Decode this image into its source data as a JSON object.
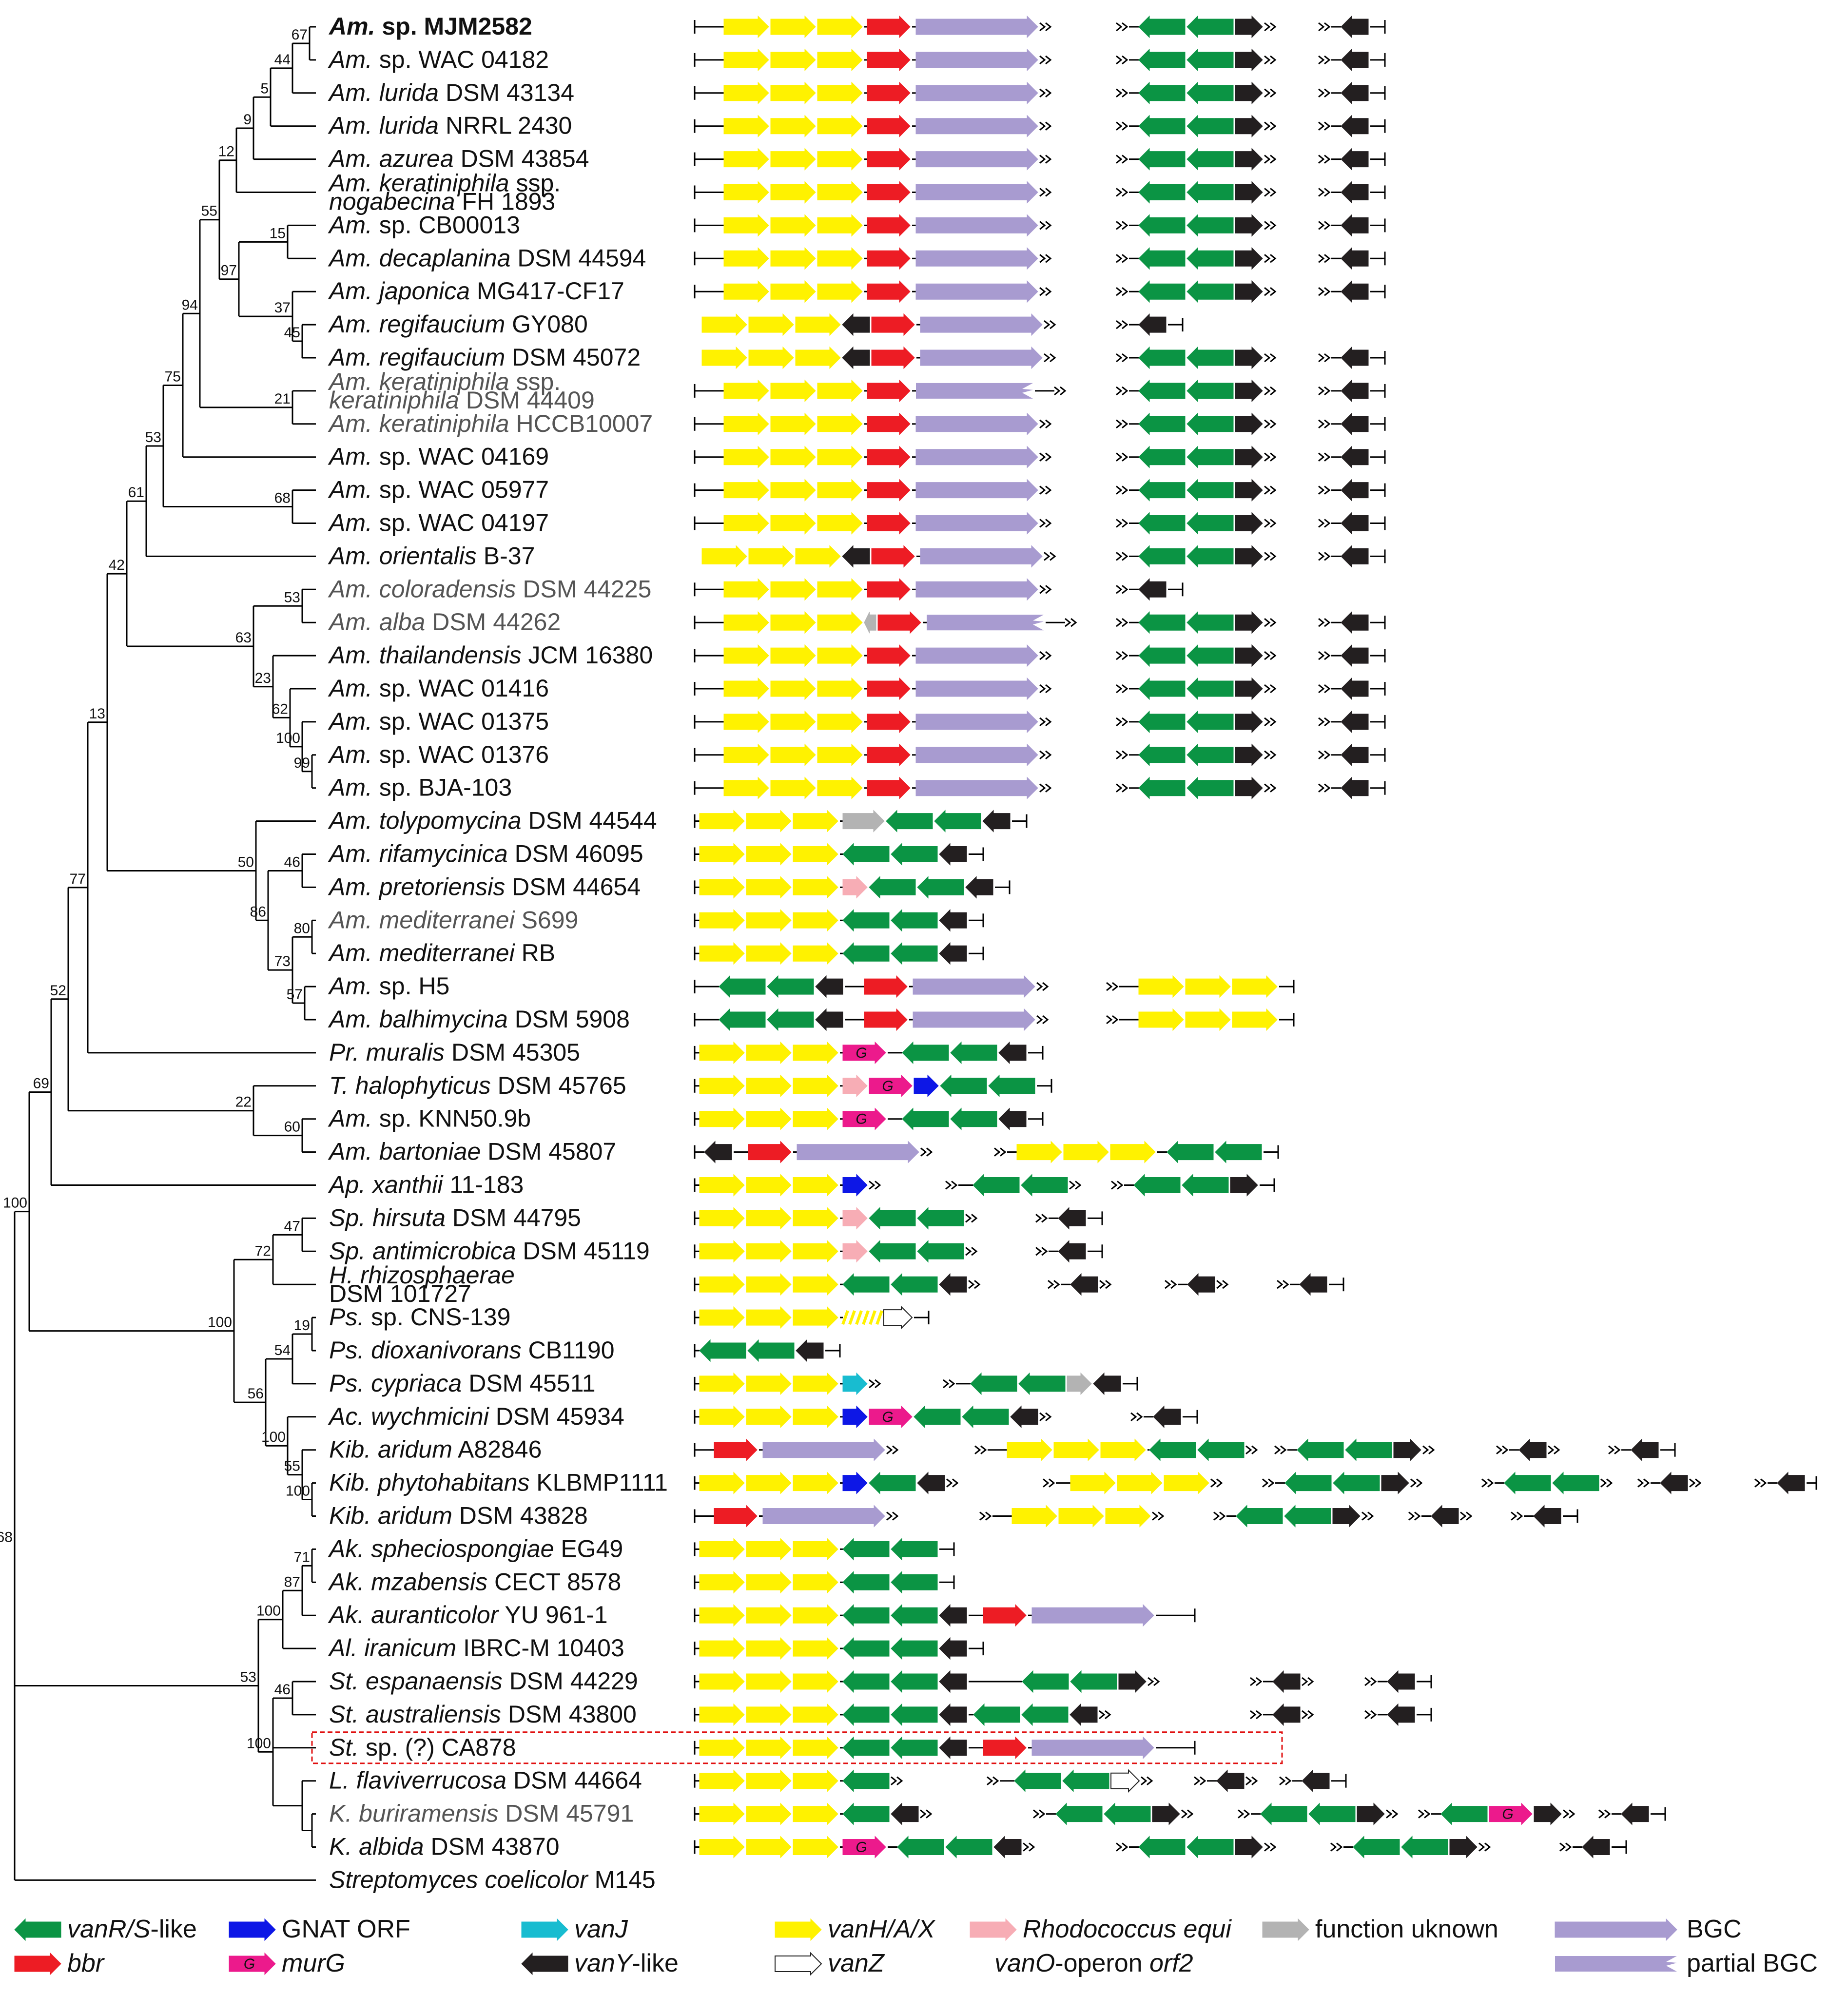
{
  "colors": {
    "vanRS": "#0b9444",
    "bbr": "#ed1c24",
    "gnat": "#0d17e6",
    "murG": "#ec1a8c",
    "vanJ": "#18bcd0",
    "vanY": "#231f20",
    "vanHAX": "#fff200",
    "vanZ": "#ffffff",
    "rhodo": "#f7adb5",
    "unknown": "#b3b3b3",
    "bgc": "#a89bd0",
    "line": "#000000",
    "highlight": "#e01010"
  },
  "taxa": [
    {
      "genus": "Am.",
      "rest": " sp. MJM2582",
      "bold": true
    },
    {
      "genus": "Am.",
      "rest": " sp. WAC 04182"
    },
    {
      "genus": "Am. lurida",
      "rest": " DSM 43134"
    },
    {
      "genus": "Am. lurida",
      "rest": " NRRL 2430"
    },
    {
      "genus": "Am. azurea",
      "rest": " DSM 43854"
    },
    {
      "genus": "Am. keratiniphila",
      "rest": " ssp.",
      "genus2": "nogabecina",
      "rest2": " FH 1893"
    },
    {
      "genus": "Am.",
      "rest": " sp. CB00013"
    },
    {
      "genus": "Am. decaplanina",
      "rest": " DSM 44594"
    },
    {
      "genus": "Am. japonica",
      "rest": " MG417-CF17"
    },
    {
      "genus": "Am. regifaucium",
      "rest": " GY080"
    },
    {
      "genus": "Am. regifaucium",
      "rest": " DSM 45072"
    },
    {
      "genus": "Am. keratiniphila",
      "rest": " ssp.",
      "genus2": "keratiniphila",
      "rest2": " DSM 44409",
      "grey": true
    },
    {
      "genus": "Am. keratiniphila",
      "rest": " HCCB10007",
      "grey": true
    },
    {
      "genus": "Am.",
      "rest": " sp. WAC 04169"
    },
    {
      "genus": "Am.",
      "rest": " sp. WAC 05977"
    },
    {
      "genus": "Am.",
      "rest": " sp. WAC 04197"
    },
    {
      "genus": "Am. orientalis",
      "rest": " B-37"
    },
    {
      "genus": "Am. coloradensis",
      "rest": " DSM 44225",
      "grey": true
    },
    {
      "genus": "Am. alba",
      "rest": " DSM 44262",
      "grey": true
    },
    {
      "genus": "Am. thailandensis",
      "rest": " JCM 16380"
    },
    {
      "genus": "Am.",
      "rest": " sp. WAC 01416"
    },
    {
      "genus": "Am.",
      "rest": " sp. WAC 01375"
    },
    {
      "genus": "Am.",
      "rest": " sp. WAC 01376"
    },
    {
      "genus": "Am.",
      "rest": " sp. BJA-103"
    },
    {
      "genus": "Am. tolypomycina",
      "rest": " DSM 44544"
    },
    {
      "genus": "Am. rifamycinica",
      "rest": " DSM 46095"
    },
    {
      "genus": "Am. pretoriensis",
      "rest": " DSM 44654"
    },
    {
      "genus": "Am. mediterranei",
      "rest": " S699",
      "grey": true
    },
    {
      "genus": "Am. mediterranei",
      "rest": " RB"
    },
    {
      "genus": "Am.",
      "rest": " sp. H5"
    },
    {
      "genus": "Am. balhimycina",
      "rest": " DSM 5908"
    },
    {
      "genus": "Pr. muralis",
      "rest": " DSM 45305"
    },
    {
      "genus": "T. halophyticus",
      "rest": " DSM 45765"
    },
    {
      "genus": "Am.",
      "rest": " sp. KNN50.9b"
    },
    {
      "genus": "Am. bartoniae",
      "rest": " DSM 45807"
    },
    {
      "genus": "Ap. xanthii",
      "rest": " 11-183"
    },
    {
      "genus": "Sp. hirsuta",
      "rest": " DSM 44795"
    },
    {
      "genus": "Sp. antimicrobica",
      "rest": " DSM 45119"
    },
    {
      "genus": "H. rhizosphaerae",
      "rest": "",
      "genus2": "",
      "rest2": "DSM 101727"
    },
    {
      "genus": "Ps.",
      "rest": " sp. CNS-139"
    },
    {
      "genus": "Ps. dioxanivorans",
      "rest": " CB1190"
    },
    {
      "genus": "Ps. cypriaca",
      "rest": " DSM 45511"
    },
    {
      "genus": "Ac. wychmicini",
      "rest": " DSM 45934"
    },
    {
      "genus": "Kib. aridum",
      "rest": " A82846"
    },
    {
      "genus": "Kib. phytohabitans",
      "rest": " KLBMP1111"
    },
    {
      "genus": "Kib. aridum",
      "rest": " DSM 43828"
    },
    {
      "genus": "Ak. spheciospongiae",
      "rest": " EG49"
    },
    {
      "genus": "Ak. mzabensis",
      "rest": " CECT 8578"
    },
    {
      "genus": "Ak. auranticolor",
      "rest": " YU 961-1"
    },
    {
      "genus": "Al. iranicum",
      "rest": " IBRC-M 10403"
    },
    {
      "genus": "St. espanaensis",
      "rest": " DSM 44229"
    },
    {
      "genus": "St. australiensis",
      "rest": " DSM 43800"
    },
    {
      "genus": "St.",
      "rest": " sp. (?) CA878"
    },
    {
      "genus": "L. flaviverrucosa",
      "rest": " DSM 44664"
    },
    {
      "genus": "K. buriramensis",
      "rest": " DSM 45791",
      "grey": true
    },
    {
      "genus": "K. albida",
      "rest": " DSM 43870"
    },
    {
      "genus": "Streptomyces coelicolor",
      "rest": " M145"
    }
  ],
  "bootstrap": [
    "67",
    "44",
    "5",
    "9",
    "12",
    "55",
    "15",
    "97",
    "94",
    "37",
    "45",
    "75",
    "21",
    "53",
    "61",
    "68",
    "42",
    "53",
    "63",
    "23",
    "62",
    "13",
    "100",
    "99",
    "46",
    "50",
    "77",
    "86",
    "80",
    "73",
    "52",
    "57",
    "69",
    "22",
    "60",
    "100",
    "47",
    "72",
    "100",
    "19",
    "54",
    "56",
    "100",
    "55",
    "100",
    "68",
    "71",
    "87",
    "100",
    "53",
    "46",
    "100"
  ],
  "legend": [
    {
      "label_italic": "vanR/S",
      "label": "-like",
      "color_key": "vanRS",
      "dir": "left"
    },
    {
      "label_italic": "",
      "label": "bbr",
      "italic_all": true,
      "color_key": "bbr",
      "dir": "right"
    },
    {
      "label_italic": "",
      "label": "GNAT ORF",
      "color_key": "gnat",
      "dir": "right"
    },
    {
      "label_italic": "",
      "label": "murG",
      "italic_all": true,
      "color_key": "murG",
      "dir": "right",
      "glyph": "G"
    },
    {
      "label_italic": "",
      "label": "vanJ",
      "italic_all": true,
      "color_key": "vanJ",
      "dir": "right"
    },
    {
      "label_italic": "vanY",
      "label": "-like",
      "color_key": "vanY",
      "dir": "left"
    },
    {
      "label_italic": "",
      "label": "vanH/A/X",
      "italic_all": true,
      "color_key": "vanHAX",
      "dir": "right"
    },
    {
      "label_italic": "",
      "label": "vanZ",
      "italic_all": true,
      "color_key": "vanZ",
      "dir": "right"
    },
    {
      "label_italic": "Rhodococcus equi",
      "label": "",
      "color_key": "rhodo",
      "dir": "right"
    },
    {
      "label_italic": "vanO",
      "label": "-operon ",
      "label_italic2": "orf2",
      "color_key": "rhodo",
      "second_line": true
    },
    {
      "label_italic": "",
      "label": "function uknown",
      "color_key": "unknown",
      "dir": "right"
    },
    {
      "label_italic": "",
      "label": "BGC",
      "color_key": "bgc",
      "dir": "right"
    },
    {
      "label_italic": "",
      "label": "partial BGC",
      "color_key": "bgc",
      "dir": "right",
      "partial": true
    }
  ],
  "murG_glyph": "G",
  "highlighted_taxon": "St. sp. (?) CA878"
}
